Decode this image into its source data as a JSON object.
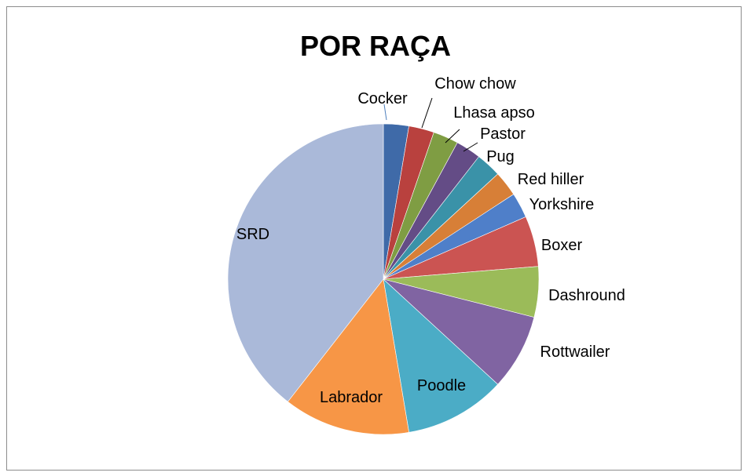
{
  "chart_data": {
    "type": "pie",
    "title": "POR RAÇA",
    "slices": [
      {
        "label": "Cocker",
        "value": 1,
        "color": "#3f6aa8"
      },
      {
        "label": "Chow chow",
        "value": 1,
        "color": "#b9413e"
      },
      {
        "label": "Lhasa apso",
        "value": 1,
        "color": "#7f9d43"
      },
      {
        "label": "Pastor",
        "value": 1,
        "color": "#644c86"
      },
      {
        "label": "Pug",
        "value": 1,
        "color": "#3a92a8"
      },
      {
        "label": "Red hiller",
        "value": 1,
        "color": "#d77f37"
      },
      {
        "label": "Yorkshire",
        "value": 1,
        "color": "#4f7fc9"
      },
      {
        "label": "Boxer",
        "value": 2,
        "color": "#cb5452"
      },
      {
        "label": "Dashround",
        "value": 2,
        "color": "#9bbb59"
      },
      {
        "label": "Rottwailer",
        "value": 3,
        "color": "#8064a2"
      },
      {
        "label": "Poodle",
        "value": 4,
        "color": "#4bacc6"
      },
      {
        "label": "Labrador",
        "value": 5,
        "color": "#f79646"
      },
      {
        "label": "SRD",
        "value": 15,
        "color": "#aab9d9"
      }
    ]
  }
}
